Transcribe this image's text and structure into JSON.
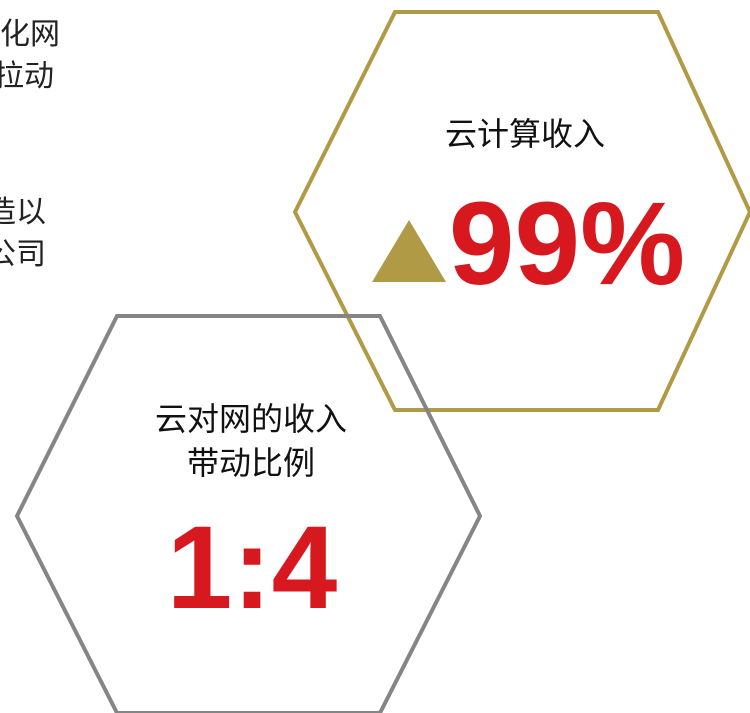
{
  "left_text": [
    "化网",
    "拉动",
    "造以",
    "公司"
  ],
  "hexagons": [
    {
      "title": [
        "云计算收入"
      ],
      "value": "99%"
    },
    {
      "title": [
        "云对网的收入",
        "带动比例"
      ],
      "value": "1:4"
    }
  ]
}
